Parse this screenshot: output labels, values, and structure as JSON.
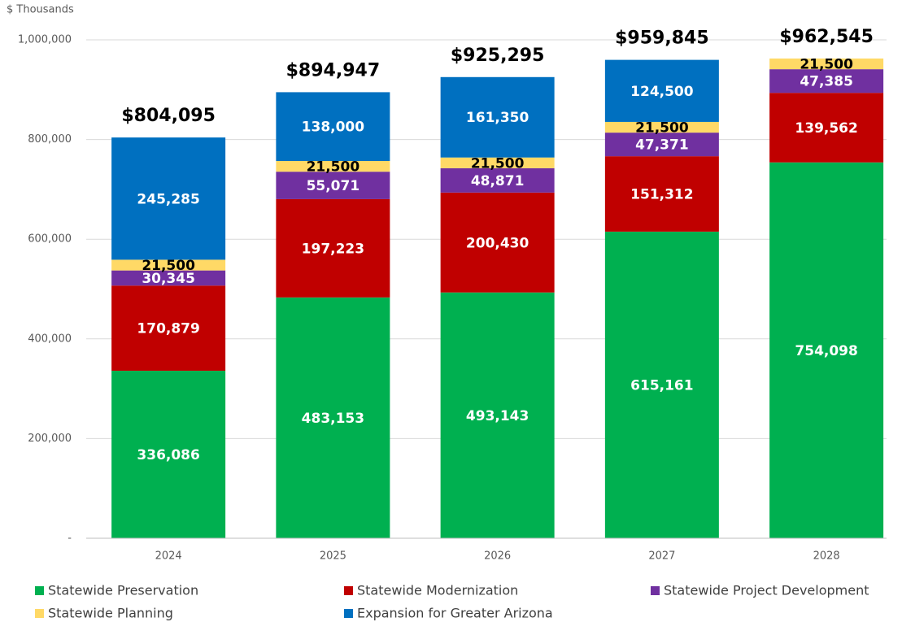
{
  "chart_data": {
    "type": "stacked_bar",
    "y_axis_label": "$ Thousands",
    "categories": [
      "2024",
      "2025",
      "2026",
      "2027",
      "2028"
    ],
    "series": [
      {
        "name": "Statewide Preservation",
        "color": "#00b050",
        "label_color": "#ffffff",
        "values": [
          336086,
          483153,
          493143,
          615161,
          754098
        ],
        "value_labels": [
          "336,086",
          "483,153",
          "493,143",
          "615,161",
          "754,098"
        ]
      },
      {
        "name": "Statewide Modernization",
        "color": "#c00000",
        "label_color": "#ffffff",
        "values": [
          170879,
          197223,
          200430,
          151312,
          139562
        ],
        "value_labels": [
          "170,879",
          "197,223",
          "200,430",
          "151,312",
          "139,562"
        ]
      },
      {
        "name": "Statewide Project Development",
        "color": "#7030a0",
        "label_color": "#ffffff",
        "values": [
          30345,
          55071,
          48871,
          47371,
          47385
        ],
        "value_labels": [
          "30,345",
          "55,071",
          "48,871",
          "47,371",
          "47,385"
        ]
      },
      {
        "name": "Statewide Planning",
        "color": "#ffd966",
        "label_color": "#000000",
        "values": [
          21500,
          21500,
          21500,
          21500,
          21500
        ],
        "value_labels": [
          "21,500",
          "21,500",
          "21,500",
          "21,500",
          "21,500"
        ]
      },
      {
        "name": "Expansion for Greater Arizona",
        "color": "#0070c0",
        "label_color": "#ffffff",
        "values": [
          245285,
          138000,
          161350,
          124500,
          null
        ],
        "value_labels": [
          "245,285",
          "138,000",
          "161,350",
          "124,500",
          null
        ]
      }
    ],
    "totals": [
      804095,
      894947,
      925295,
      959845,
      962545
    ],
    "total_labels": [
      "$804,095",
      "$894,947",
      "$925,295",
      "$959,845",
      "$962,545"
    ],
    "ylim": [
      0,
      1000000
    ],
    "yticks": [
      {
        "value": 0,
        "label": "-"
      },
      {
        "value": 200000,
        "label": "200,000"
      },
      {
        "value": 400000,
        "label": "400,000"
      },
      {
        "value": 600000,
        "label": "600,000"
      },
      {
        "value": 800000,
        "label": "800,000"
      },
      {
        "value": 1000000,
        "label": "1,000,000"
      }
    ],
    "grid": true
  }
}
